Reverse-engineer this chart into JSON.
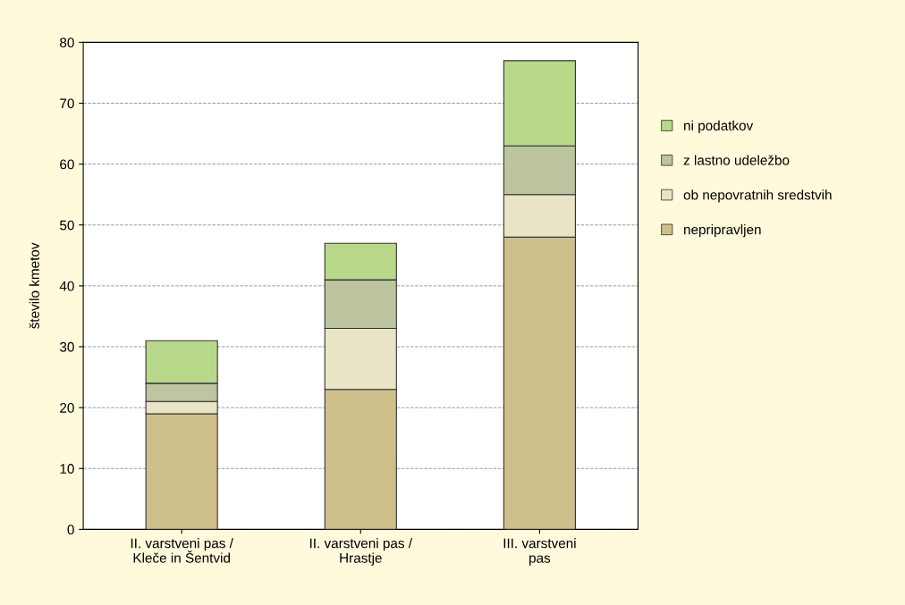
{
  "chart_data": {
    "type": "bar",
    "stacked": true,
    "ylabel": "število kmetov",
    "categories": [
      "II. varstveni pas /\nKleče in Šentvid",
      "II. varstveni pas /\nHrastje",
      "III. varstveni\npas"
    ],
    "series": [
      {
        "name": "nepripravljen",
        "color": "#cfbf8a",
        "values": [
          19,
          23,
          48
        ]
      },
      {
        "name": "ob nepovratnih sredstvih",
        "color": "#e9e4c6",
        "values": [
          2,
          10,
          7
        ]
      },
      {
        "name": "z lastno udeležbo",
        "color": "#bcc59f",
        "values": [
          3,
          8,
          8
        ]
      },
      {
        "name": "ni podatkov",
        "color": "#b8d98a",
        "values": [
          7,
          6,
          14
        ]
      }
    ],
    "ylim": [
      0,
      80
    ],
    "yticks": [
      0,
      10,
      20,
      30,
      40,
      50,
      60,
      70,
      80
    ],
    "grid": "y",
    "legend": "right"
  }
}
